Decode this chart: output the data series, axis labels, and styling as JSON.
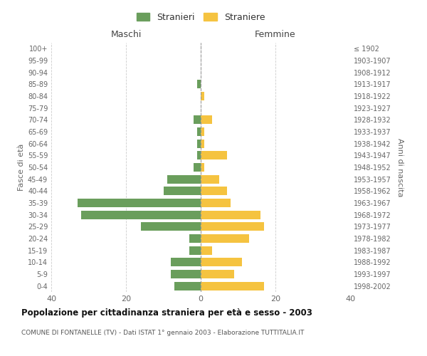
{
  "age_groups": [
    "0-4",
    "5-9",
    "10-14",
    "15-19",
    "20-24",
    "25-29",
    "30-34",
    "35-39",
    "40-44",
    "45-49",
    "50-54",
    "55-59",
    "60-64",
    "65-69",
    "70-74",
    "75-79",
    "80-84",
    "85-89",
    "90-94",
    "95-99",
    "100+"
  ],
  "birth_years": [
    "1998-2002",
    "1993-1997",
    "1988-1992",
    "1983-1987",
    "1978-1982",
    "1973-1977",
    "1968-1972",
    "1963-1967",
    "1958-1962",
    "1953-1957",
    "1948-1952",
    "1943-1947",
    "1938-1942",
    "1933-1937",
    "1928-1932",
    "1923-1927",
    "1918-1922",
    "1913-1917",
    "1908-1912",
    "1903-1907",
    "≤ 1902"
  ],
  "males": [
    7,
    8,
    8,
    3,
    3,
    16,
    32,
    33,
    10,
    9,
    2,
    1,
    1,
    1,
    2,
    0,
    0,
    1,
    0,
    0,
    0
  ],
  "females": [
    17,
    9,
    11,
    3,
    13,
    17,
    16,
    8,
    7,
    5,
    1,
    7,
    1,
    1,
    3,
    0,
    1,
    0,
    0,
    0,
    0
  ],
  "male_color": "#6a9e5c",
  "female_color": "#f5c340",
  "background_color": "#ffffff",
  "grid_color": "#cccccc",
  "title": "Popolazione per cittadinanza straniera per età e sesso - 2003",
  "subtitle": "COMUNE DI FONTANELLE (TV) - Dati ISTAT 1° gennaio 2003 - Elaborazione TUTTITALIA.IT",
  "xlabel_left": "Maschi",
  "xlabel_right": "Femmine",
  "ylabel_left": "Fasce di età",
  "ylabel_right": "Anni di nascita",
  "xlim": 40,
  "legend_stranieri": "Stranieri",
  "legend_straniere": "Straniere"
}
